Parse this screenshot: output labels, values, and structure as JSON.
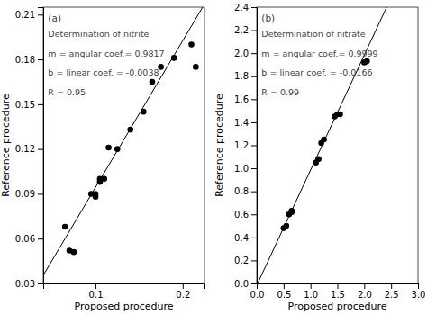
{
  "chart_data": [
    {
      "type": "scatter",
      "annotations": [
        "(a)",
        "Determination of nitrite",
        "m = angular coef.= 0.9817",
        "b = linear coef. = -0.0038",
        "R = 0.95"
      ],
      "x": [
        0.065,
        0.07,
        0.075,
        0.095,
        0.1,
        0.1,
        0.105,
        0.105,
        0.11,
        0.115,
        0.125,
        0.14,
        0.155,
        0.165,
        0.175,
        0.19,
        0.21,
        0.215
      ],
      "values": [
        0.068,
        0.052,
        0.051,
        0.09,
        0.088,
        0.09,
        0.098,
        0.1,
        0.1,
        0.121,
        0.12,
        0.133,
        0.145,
        0.165,
        0.175,
        0.181,
        0.19,
        0.175
      ],
      "color": "#000000",
      "fit": {
        "slope": 0.9817,
        "intercept": -0.0038,
        "color": "#000000"
      },
      "xlim": [
        0.04,
        0.225
      ],
      "ylim": [
        0.03,
        0.215
      ],
      "xticks": [
        0.1,
        0.2
      ],
      "yticks": [
        0.03,
        0.06,
        0.09,
        0.12,
        0.15,
        0.18,
        0.21
      ],
      "xlabel": "Proposed procedure",
      "ylabel": "Reference procedure",
      "grid": false
    },
    {
      "type": "scatter",
      "annotations": [
        "(b)",
        "Determination of nitrate",
        "m = angular coef.= 0.9999",
        "b = linear coef. = -0.0166",
        "R = 0.99"
      ],
      "x": [
        0.5,
        0.55,
        0.6,
        0.65,
        0.65,
        1.1,
        1.15,
        1.2,
        1.25,
        1.45,
        1.5,
        1.55,
        2.0,
        2.05
      ],
      "values": [
        0.48,
        0.5,
        0.6,
        0.62,
        0.63,
        1.05,
        1.08,
        1.22,
        1.25,
        1.45,
        1.47,
        1.47,
        1.92,
        1.93
      ],
      "color": "#000000",
      "fit": {
        "slope": 0.9999,
        "intercept": -0.0166,
        "color": "#000000"
      },
      "xlim": [
        0.0,
        3.0
      ],
      "ylim": [
        0.0,
        2.4
      ],
      "xticks": [
        {
          "value": 0.0,
          "label": "0.0"
        },
        0.5,
        {
          "value": 1.0,
          "label": "1.0"
        },
        1.5,
        {
          "value": 2.0,
          "label": "2.0"
        },
        2.5,
        {
          "value": 3.0,
          "label": "3.0"
        }
      ],
      "yticks": [
        {
          "value": 0.0,
          "label": "0.0"
        },
        0.2,
        0.4,
        0.6,
        0.8,
        {
          "value": 1.0,
          "label": "1.0"
        },
        1.2,
        1.4,
        1.6,
        1.8,
        {
          "value": 2.0,
          "label": "2.0"
        },
        2.2,
        2.4
      ],
      "xlabel": "Proposed procedure",
      "ylabel": "Reference procedure",
      "grid": false
    }
  ]
}
